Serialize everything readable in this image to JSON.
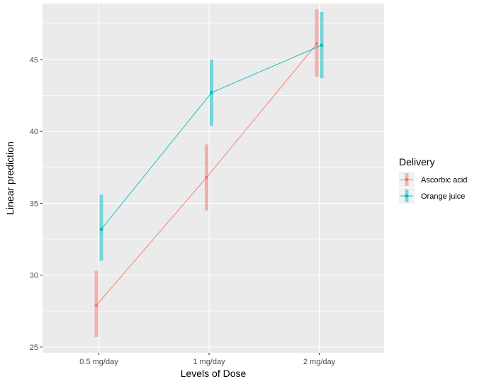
{
  "chart_data": {
    "type": "line",
    "title": "",
    "xlabel": "Levels of Dose",
    "ylabel": "Linear prediction",
    "categories": [
      "0.5 mg/day",
      "1 mg/day",
      "2 mg/day"
    ],
    "yticks": [
      25,
      30,
      35,
      40,
      45
    ],
    "ylim": [
      24.6,
      48.9
    ],
    "grid": true,
    "legend": {
      "title": "Delivery",
      "placement": "right"
    },
    "series": [
      {
        "name": "Ascorbic acid",
        "color": "#F8766D",
        "values": [
          27.9,
          36.8,
          46.1
        ],
        "ci_low": [
          25.7,
          34.5,
          43.8
        ],
        "ci_high": [
          30.3,
          39.1,
          48.5
        ]
      },
      {
        "name": "Orange juice",
        "color": "#00BFC4",
        "values": [
          33.2,
          42.7,
          46.0
        ],
        "ci_low": [
          31.0,
          40.4,
          43.7
        ],
        "ci_high": [
          35.6,
          45.0,
          48.3
        ]
      }
    ]
  }
}
